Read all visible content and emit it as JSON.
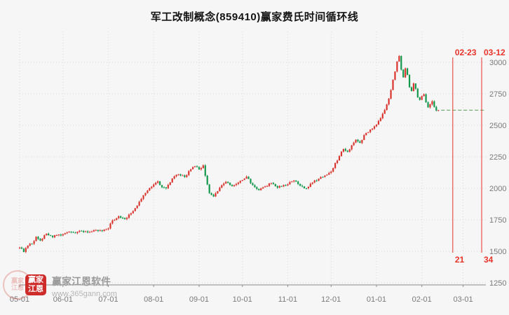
{
  "title": "军工改制概念(859410)赢家费氏时间循环线",
  "instrument": {
    "name": "军工改制概念",
    "code": "859410",
    "indicator": "赢家费氏时间循环线"
  },
  "watermark": {
    "seal_text": "赢家江恩",
    "logo_line1": "赢家",
    "logo_line2": "江恩",
    "name": "赢家江恩软件",
    "url": "www.365gann.com"
  },
  "chart_data": {
    "type": "candlestick",
    "title": "军工改制概念(859410)赢家费氏时间循环线",
    "xlabel": "",
    "ylabel": "",
    "grid": true,
    "ylim": [
      1250,
      3240
    ],
    "y_ticks": [
      1250,
      1500,
      1750,
      2000,
      2250,
      2500,
      2750,
      3000
    ],
    "x_labels": [
      {
        "label": "05-01",
        "day": 0
      },
      {
        "label": "06-01",
        "day": 21
      },
      {
        "label": "07-01",
        "day": 43
      },
      {
        "label": "08-01",
        "day": 65
      },
      {
        "label": "09-01",
        "day": 87
      },
      {
        "label": "10-01",
        "day": 108
      },
      {
        "label": "11-01",
        "day": 130
      },
      {
        "label": "12-01",
        "day": 151
      },
      {
        "label": "01-01",
        "day": 173
      },
      {
        "label": "02-01",
        "day": 195
      },
      {
        "label": "03-01",
        "day": 215
      }
    ],
    "last_day": 203,
    "close_anchors": [
      [
        0,
        1530
      ],
      [
        2,
        1495
      ],
      [
        4,
        1545
      ],
      [
        6,
        1560
      ],
      [
        8,
        1615
      ],
      [
        10,
        1585
      ],
      [
        13,
        1640
      ],
      [
        16,
        1612
      ],
      [
        18,
        1628
      ],
      [
        21,
        1635
      ],
      [
        24,
        1656
      ],
      [
        27,
        1645
      ],
      [
        30,
        1662
      ],
      [
        33,
        1650
      ],
      [
        36,
        1668
      ],
      [
        40,
        1660
      ],
      [
        43,
        1682
      ],
      [
        45,
        1745
      ],
      [
        48,
        1778
      ],
      [
        51,
        1755
      ],
      [
        54,
        1802
      ],
      [
        57,
        1862
      ],
      [
        60,
        1945
      ],
      [
        63,
        2002
      ],
      [
        65,
        2030
      ],
      [
        67,
        2055
      ],
      [
        69,
        2008
      ],
      [
        71,
        2000
      ],
      [
        74,
        2078
      ],
      [
        77,
        2112
      ],
      [
        80,
        2090
      ],
      [
        83,
        2152
      ],
      [
        85,
        2175
      ],
      [
        87,
        2150
      ],
      [
        89,
        2182
      ],
      [
        90,
        2100
      ],
      [
        92,
        1962
      ],
      [
        94,
        1935
      ],
      [
        97,
        2005
      ],
      [
        100,
        2052
      ],
      [
        103,
        2018
      ],
      [
        106,
        2045
      ],
      [
        108,
        2066
      ],
      [
        110,
        2092
      ],
      [
        113,
        2025
      ],
      [
        116,
        1985
      ],
      [
        119,
        2015
      ],
      [
        122,
        2042
      ],
      [
        125,
        2005
      ],
      [
        128,
        2026
      ],
      [
        130,
        2032
      ],
      [
        133,
        2062
      ],
      [
        136,
        2020
      ],
      [
        139,
        2000
      ],
      [
        142,
        2046
      ],
      [
        145,
        2076
      ],
      [
        148,
        2102
      ],
      [
        151,
        2132
      ],
      [
        153,
        2200
      ],
      [
        155,
        2256
      ],
      [
        157,
        2312
      ],
      [
        159,
        2290
      ],
      [
        161,
        2342
      ],
      [
        163,
        2386
      ],
      [
        165,
        2360
      ],
      [
        167,
        2422
      ],
      [
        170,
        2466
      ],
      [
        173,
        2506
      ],
      [
        175,
        2556
      ],
      [
        177,
        2622
      ],
      [
        179,
        2712
      ],
      [
        181,
        2862
      ],
      [
        183,
        3006
      ],
      [
        184,
        3050
      ],
      [
        185,
        2942
      ],
      [
        186,
        2880
      ],
      [
        187,
        2952
      ],
      [
        188,
        2900
      ],
      [
        189,
        2802
      ],
      [
        190,
        2772
      ],
      [
        191,
        2832
      ],
      [
        192,
        2790
      ],
      [
        193,
        2722
      ],
      [
        194,
        2702
      ],
      [
        195,
        2732
      ],
      [
        196,
        2746
      ],
      [
        197,
        2682
      ],
      [
        198,
        2642
      ],
      [
        199,
        2666
      ],
      [
        200,
        2690
      ],
      [
        201,
        2646
      ],
      [
        202,
        2616
      ],
      [
        203,
        2620
      ]
    ],
    "last_close_line": {
      "value": 2620,
      "color": "#57a05c"
    },
    "annotations": {
      "color": "#e8332a",
      "vlines": [
        {
          "day": 210,
          "top_label": "02-23",
          "bottom_label": "21"
        },
        {
          "day": 224,
          "top_label": "03-12",
          "bottom_label": "34"
        }
      ]
    },
    "colors": {
      "up": "#d9342e",
      "down": "#13984c",
      "grid": "#d9d9d9",
      "axis": "#8a8a8a",
      "tick_text": "#7a7a7a"
    }
  }
}
